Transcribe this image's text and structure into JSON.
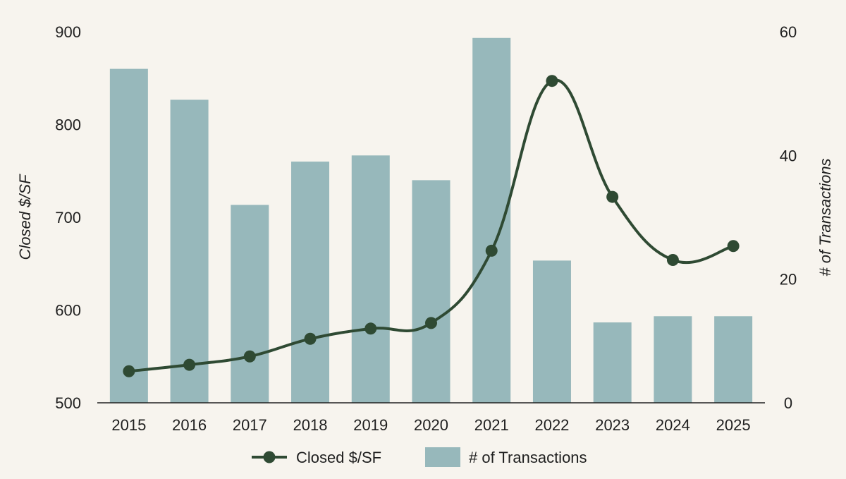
{
  "chart_data": {
    "type": "bar",
    "categories": [
      "2015",
      "2016",
      "2017",
      "2018",
      "2019",
      "2020",
      "2021",
      "2022",
      "2023",
      "2024",
      "2025"
    ],
    "series": [
      {
        "name": "# of Transactions",
        "type": "bar",
        "axis": "right",
        "values": [
          54,
          49,
          32,
          39,
          40,
          36,
          59,
          23,
          13,
          14,
          14
        ]
      },
      {
        "name": "Closed $/SF",
        "type": "line",
        "axis": "left",
        "values": [
          534,
          541,
          550,
          569,
          580,
          586,
          664,
          847,
          722,
          654,
          669
        ]
      }
    ],
    "ylabel": "Closed $/SF",
    "y2label": "# of Transactions",
    "ylim": [
      500,
      900
    ],
    "y2lim": [
      0,
      60
    ],
    "yticks": [
      "500",
      "600",
      "700",
      "800",
      "900"
    ],
    "y2ticks": [
      "0",
      "20",
      "40",
      "60"
    ],
    "legend_placement": "bottom-center",
    "grid": false,
    "colors": {
      "bar": "#97b8bb",
      "line": "#2f4a33",
      "background": "#f7f4ee"
    }
  }
}
